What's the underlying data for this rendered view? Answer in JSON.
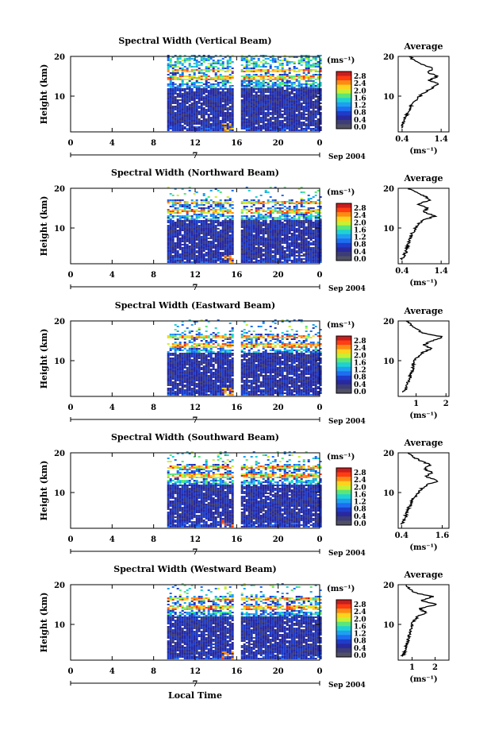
{
  "figure": {
    "xlabel": "Local Time",
    "date_label": "Sep 2004",
    "day_label": "7",
    "colorbar_unit": "(ms⁻¹)",
    "colorbar_ticks": [
      "2.8",
      "2.4",
      "2.0",
      "1.6",
      "1.2",
      "0.8",
      "0.4",
      "0.0"
    ],
    "colorbar_colors": [
      "#c81e1e",
      "#ff3c14",
      "#ff8a14",
      "#ffd21e",
      "#c8f032",
      "#5ae678",
      "#1ed2d2",
      "#1ea0f0",
      "#1e6ef0",
      "#1e3cc8",
      "#2828a0",
      "#3c3c78",
      "#505064"
    ],
    "profile_title": "Average",
    "profile_xlabel": "(ms⁻¹)",
    "ylabel": "Height (km)"
  },
  "chart_data": [
    {
      "type": "heatmap",
      "title": "Spectral Width (Vertical Beam)",
      "xlabel": "Local Time",
      "ylabel": "Height (km)",
      "xlim": [
        0,
        24
      ],
      "ylim": [
        1,
        20
      ],
      "xticks": [
        "0",
        "4",
        "8",
        "12",
        "16",
        "20",
        "0"
      ],
      "yticks": [
        "20",
        "10"
      ],
      "data_gap_hours": [
        [
          0,
          9.3
        ],
        [
          15.6,
          16.3
        ]
      ],
      "shear_layer_km": [
        13.5,
        17
      ],
      "profile": {
        "title": "Average",
        "xticks": [
          "0.4",
          "1.4"
        ],
        "xlim": [
          0.3,
          1.6
        ],
        "heights_km": [
          2,
          3,
          4,
          5,
          6,
          7,
          8,
          9,
          10,
          11,
          12,
          13,
          14,
          15,
          16,
          17,
          18,
          19,
          20
        ],
        "values": [
          0.38,
          0.42,
          0.45,
          0.5,
          0.55,
          0.6,
          0.66,
          0.75,
          0.85,
          0.98,
          1.15,
          1.35,
          1.1,
          1.3,
          1.05,
          1.2,
          0.9,
          0.7,
          0.6
        ]
      }
    },
    {
      "type": "heatmap",
      "title": "Spectral Width (Northward Beam)",
      "xlabel": "Local Time",
      "ylabel": "Height (km)",
      "xlim": [
        0,
        24
      ],
      "ylim": [
        1,
        20
      ],
      "xticks": [
        "0",
        "4",
        "8",
        "12",
        "16",
        "20",
        "0"
      ],
      "yticks": [
        "20",
        "10"
      ],
      "data_gap_hours": [
        [
          0,
          9.3
        ],
        [
          15.6,
          16.3
        ]
      ],
      "shear_layer_km": [
        13,
        17
      ],
      "profile": {
        "title": "Average",
        "xticks": [
          "0.4",
          "1.4"
        ],
        "xlim": [
          0.3,
          1.6
        ],
        "heights_km": [
          2,
          3,
          4,
          5,
          6,
          7,
          8,
          9,
          10,
          11,
          12,
          13,
          14,
          15,
          16,
          17,
          18,
          19,
          20
        ],
        "values": [
          0.38,
          0.45,
          0.5,
          0.52,
          0.55,
          0.6,
          0.62,
          0.68,
          0.75,
          0.8,
          0.95,
          1.25,
          0.95,
          1.05,
          0.8,
          1.1,
          1.0,
          0.75,
          0.55
        ]
      }
    },
    {
      "type": "heatmap",
      "title": "Spectral Width (Eastward Beam)",
      "xlabel": "Local Time",
      "ylabel": "Height (km)",
      "xlim": [
        0,
        24
      ],
      "ylim": [
        1,
        20
      ],
      "xticks": [
        "0",
        "4",
        "8",
        "12",
        "16",
        "20",
        "0"
      ],
      "yticks": [
        "20",
        "10"
      ],
      "data_gap_hours": [
        [
          0,
          9.3
        ],
        [
          15.6,
          16.3
        ]
      ],
      "shear_layer_km": [
        12.5,
        16.5
      ],
      "profile": {
        "title": "Average",
        "xticks": [
          "1",
          "2"
        ],
        "xlim": [
          0.4,
          2.1
        ],
        "heights_km": [
          2,
          3,
          4,
          5,
          6,
          7,
          8,
          9,
          10,
          11,
          12,
          13,
          14,
          15,
          16,
          17,
          18,
          19,
          20
        ],
        "values": [
          0.55,
          0.65,
          0.7,
          0.75,
          0.8,
          0.85,
          0.9,
          0.9,
          0.95,
          1.05,
          1.2,
          1.5,
          1.25,
          1.55,
          1.9,
          1.2,
          1.0,
          0.85,
          0.7
        ]
      }
    },
    {
      "type": "heatmap",
      "title": "Spectral Width (Southward Beam)",
      "xlabel": "Local Time",
      "ylabel": "Height (km)",
      "xlim": [
        0,
        24
      ],
      "ylim": [
        1,
        20
      ],
      "xticks": [
        "0",
        "4",
        "8",
        "12",
        "16",
        "20",
        "0"
      ],
      "yticks": [
        "20",
        "10"
      ],
      "data_gap_hours": [
        [
          0,
          9.3
        ],
        [
          15.6,
          16.3
        ]
      ],
      "shear_layer_km": [
        13,
        17
      ],
      "profile": {
        "title": "Average",
        "xticks": [
          "0.4",
          "1.6"
        ],
        "xlim": [
          0.3,
          1.8
        ],
        "heights_km": [
          2,
          3,
          4,
          5,
          6,
          7,
          8,
          9,
          10,
          11,
          12,
          13,
          14,
          15,
          16,
          17,
          18,
          19,
          20
        ],
        "values": [
          0.4,
          0.48,
          0.52,
          0.56,
          0.6,
          0.66,
          0.72,
          0.8,
          0.9,
          1.0,
          1.15,
          1.5,
          1.1,
          1.3,
          1.05,
          1.25,
          0.95,
          0.75,
          0.6
        ]
      }
    },
    {
      "type": "heatmap",
      "title": "Spectral Width (Westward Beam)",
      "xlabel": "Local Time",
      "ylabel": "Height (km)",
      "xlim": [
        0,
        24
      ],
      "ylim": [
        1,
        20
      ],
      "xticks": [
        "0",
        "4",
        "8",
        "12",
        "16",
        "20",
        "0"
      ],
      "yticks": [
        "20",
        "10"
      ],
      "data_gap_hours": [
        [
          0,
          9.3
        ],
        [
          15.6,
          16.3
        ]
      ],
      "shear_layer_km": [
        13,
        17
      ],
      "profile": {
        "title": "Average",
        "xticks": [
          "1",
          "2"
        ],
        "xlim": [
          0.4,
          2.6
        ],
        "heights_km": [
          2,
          3,
          4,
          5,
          6,
          7,
          8,
          9,
          10,
          11,
          12,
          13,
          14,
          15,
          16,
          17,
          18,
          19,
          20
        ],
        "values": [
          0.6,
          0.68,
          0.72,
          0.78,
          0.82,
          0.88,
          0.92,
          0.95,
          1.0,
          1.1,
          1.25,
          1.6,
          1.3,
          2.1,
          1.4,
          1.9,
          1.1,
          0.9,
          0.75
        ]
      }
    }
  ]
}
